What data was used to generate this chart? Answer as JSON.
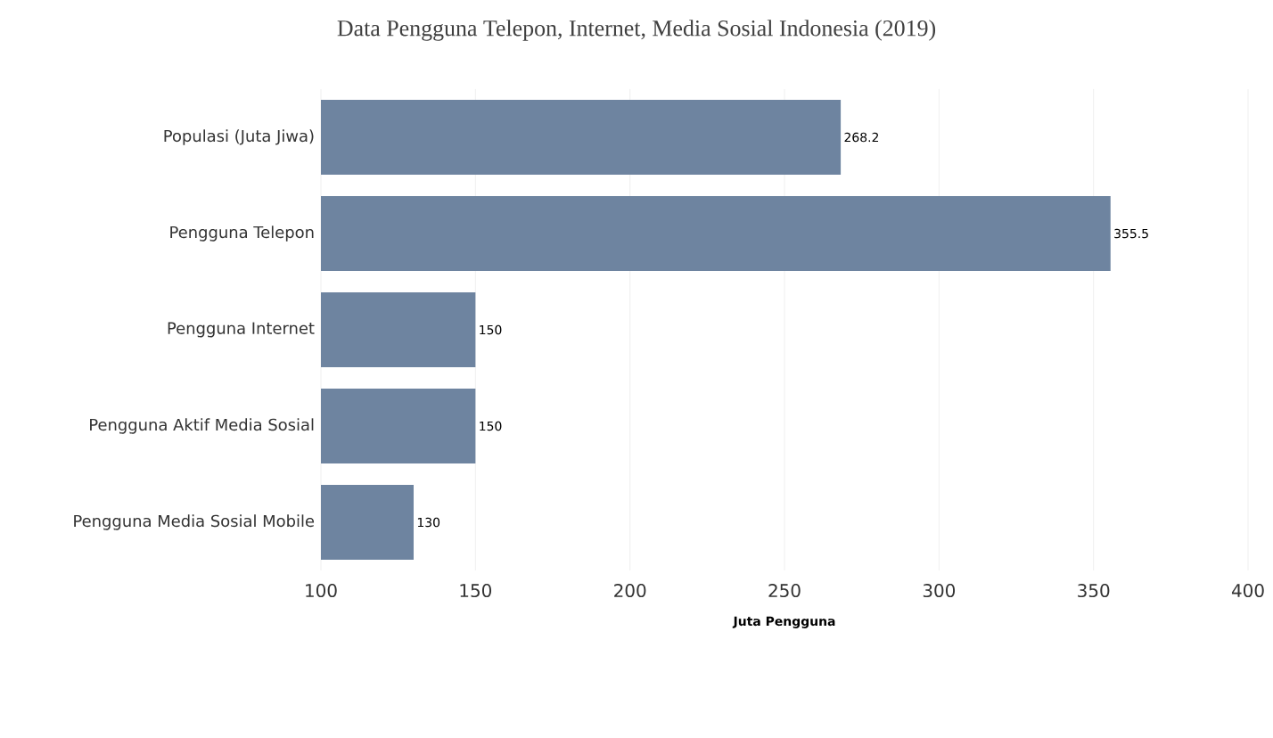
{
  "chart_data": {
    "type": "bar",
    "orientation": "horizontal",
    "title": "Data Pengguna Telepon, Internet, Media Sosial Indonesia (2019)",
    "categories": [
      "Populasi (Juta Jiwa)",
      "Pengguna Telepon",
      "Pengguna Internet",
      "Pengguna Aktif Media Sosial",
      "Pengguna Media Sosial Mobile"
    ],
    "values": [
      268.2,
      355.5,
      150,
      150,
      130
    ],
    "color": "#6e84a0",
    "xlabel": "Juta Pengguna",
    "xlim": [
      100,
      400
    ],
    "xticks": [
      100,
      150,
      200,
      250,
      300,
      350,
      400
    ],
    "grid": "x",
    "data_labels": true
  }
}
